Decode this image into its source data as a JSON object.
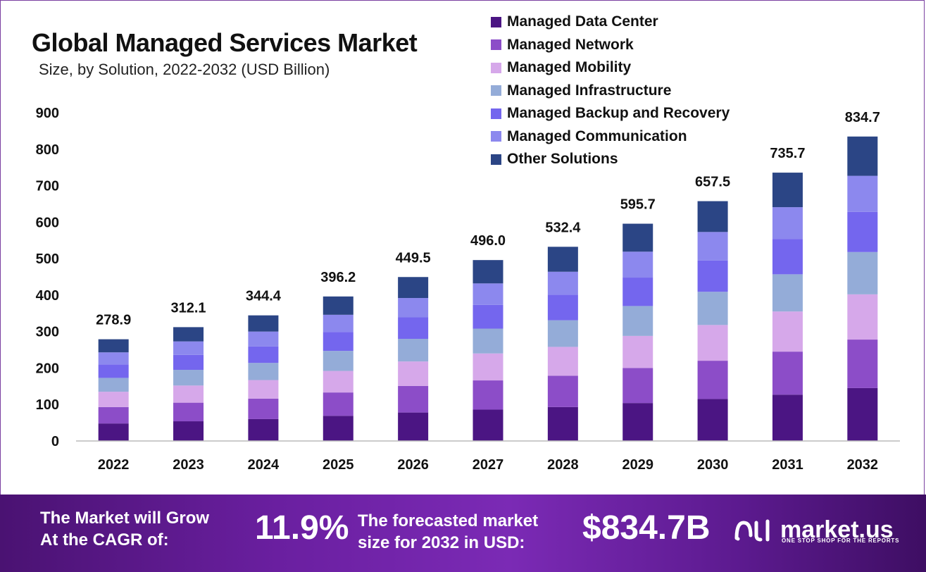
{
  "chart_data": {
    "type": "bar",
    "stacked": true,
    "title": "Global Managed Services Market",
    "subtitle": "Size, by Solution, 2022-2032 (USD Billion)",
    "xlabel": "",
    "ylabel": "",
    "ylim": [
      0,
      900
    ],
    "yticks": [
      0,
      100,
      200,
      300,
      400,
      500,
      600,
      700,
      800,
      900
    ],
    "grid": false,
    "legend_position": "top-right",
    "categories": [
      "2022",
      "2023",
      "2024",
      "2025",
      "2026",
      "2027",
      "2028",
      "2029",
      "2030",
      "2031",
      "2032"
    ],
    "totals": [
      278.9,
      312.1,
      344.4,
      396.2,
      449.5,
      496.0,
      532.4,
      595.7,
      657.5,
      735.7,
      834.7
    ],
    "total_labels": [
      "278.9",
      "312.1",
      "344.4",
      "396.2",
      "449.5",
      "496.0",
      "532.4",
      "595.7",
      "657.5",
      "735.7",
      "834.7"
    ],
    "series": [
      {
        "name": "Managed Data Center",
        "color": "#4b1583",
        "values": [
          48,
          54,
          60,
          69,
          78,
          86,
          93,
          104,
          115,
          127,
          145
        ]
      },
      {
        "name": "Managed Network",
        "color": "#8c4dc8",
        "values": [
          45,
          51,
          56,
          64,
          73,
          80,
          86,
          96,
          105,
          118,
          133
        ]
      },
      {
        "name": "Managed Mobility",
        "color": "#d6a8ea",
        "values": [
          42,
          47,
          51,
          59,
          67,
          74,
          79,
          88,
          98,
          110,
          124
        ]
      },
      {
        "name": "Managed Infrastructure",
        "color": "#94acd8",
        "values": [
          38,
          43,
          47,
          55,
          62,
          68,
          73,
          82,
          91,
          102,
          116
        ]
      },
      {
        "name": "Managed Backup and Recovery",
        "color": "#7466ee",
        "values": [
          37,
          41,
          45,
          52,
          59,
          65,
          70,
          78,
          86,
          97,
          110
        ]
      },
      {
        "name": "Managed Communication",
        "color": "#8c88ee",
        "values": [
          33,
          37,
          41,
          47,
          53,
          59,
          63,
          71,
          78,
          87,
          99
        ]
      },
      {
        "name": "Other Solutions",
        "color": "#2b4585",
        "values": [
          35.9,
          39.1,
          44.4,
          50.2,
          57.5,
          64,
          68.4,
          76.7,
          84.5,
          94.7,
          107.7
        ]
      }
    ]
  },
  "footer": {
    "cagr_label_line1": "The Market will Grow",
    "cagr_label_line2": "At the CAGR of:",
    "cagr_value": "11.9%",
    "forecast_label_line1": "The forecasted market",
    "forecast_label_line2": "size for 2032 in USD:",
    "forecast_value": "$834.7B",
    "logo_name": "market.us",
    "logo_tagline": "ONE STOP SHOP FOR THE REPORTS"
  }
}
